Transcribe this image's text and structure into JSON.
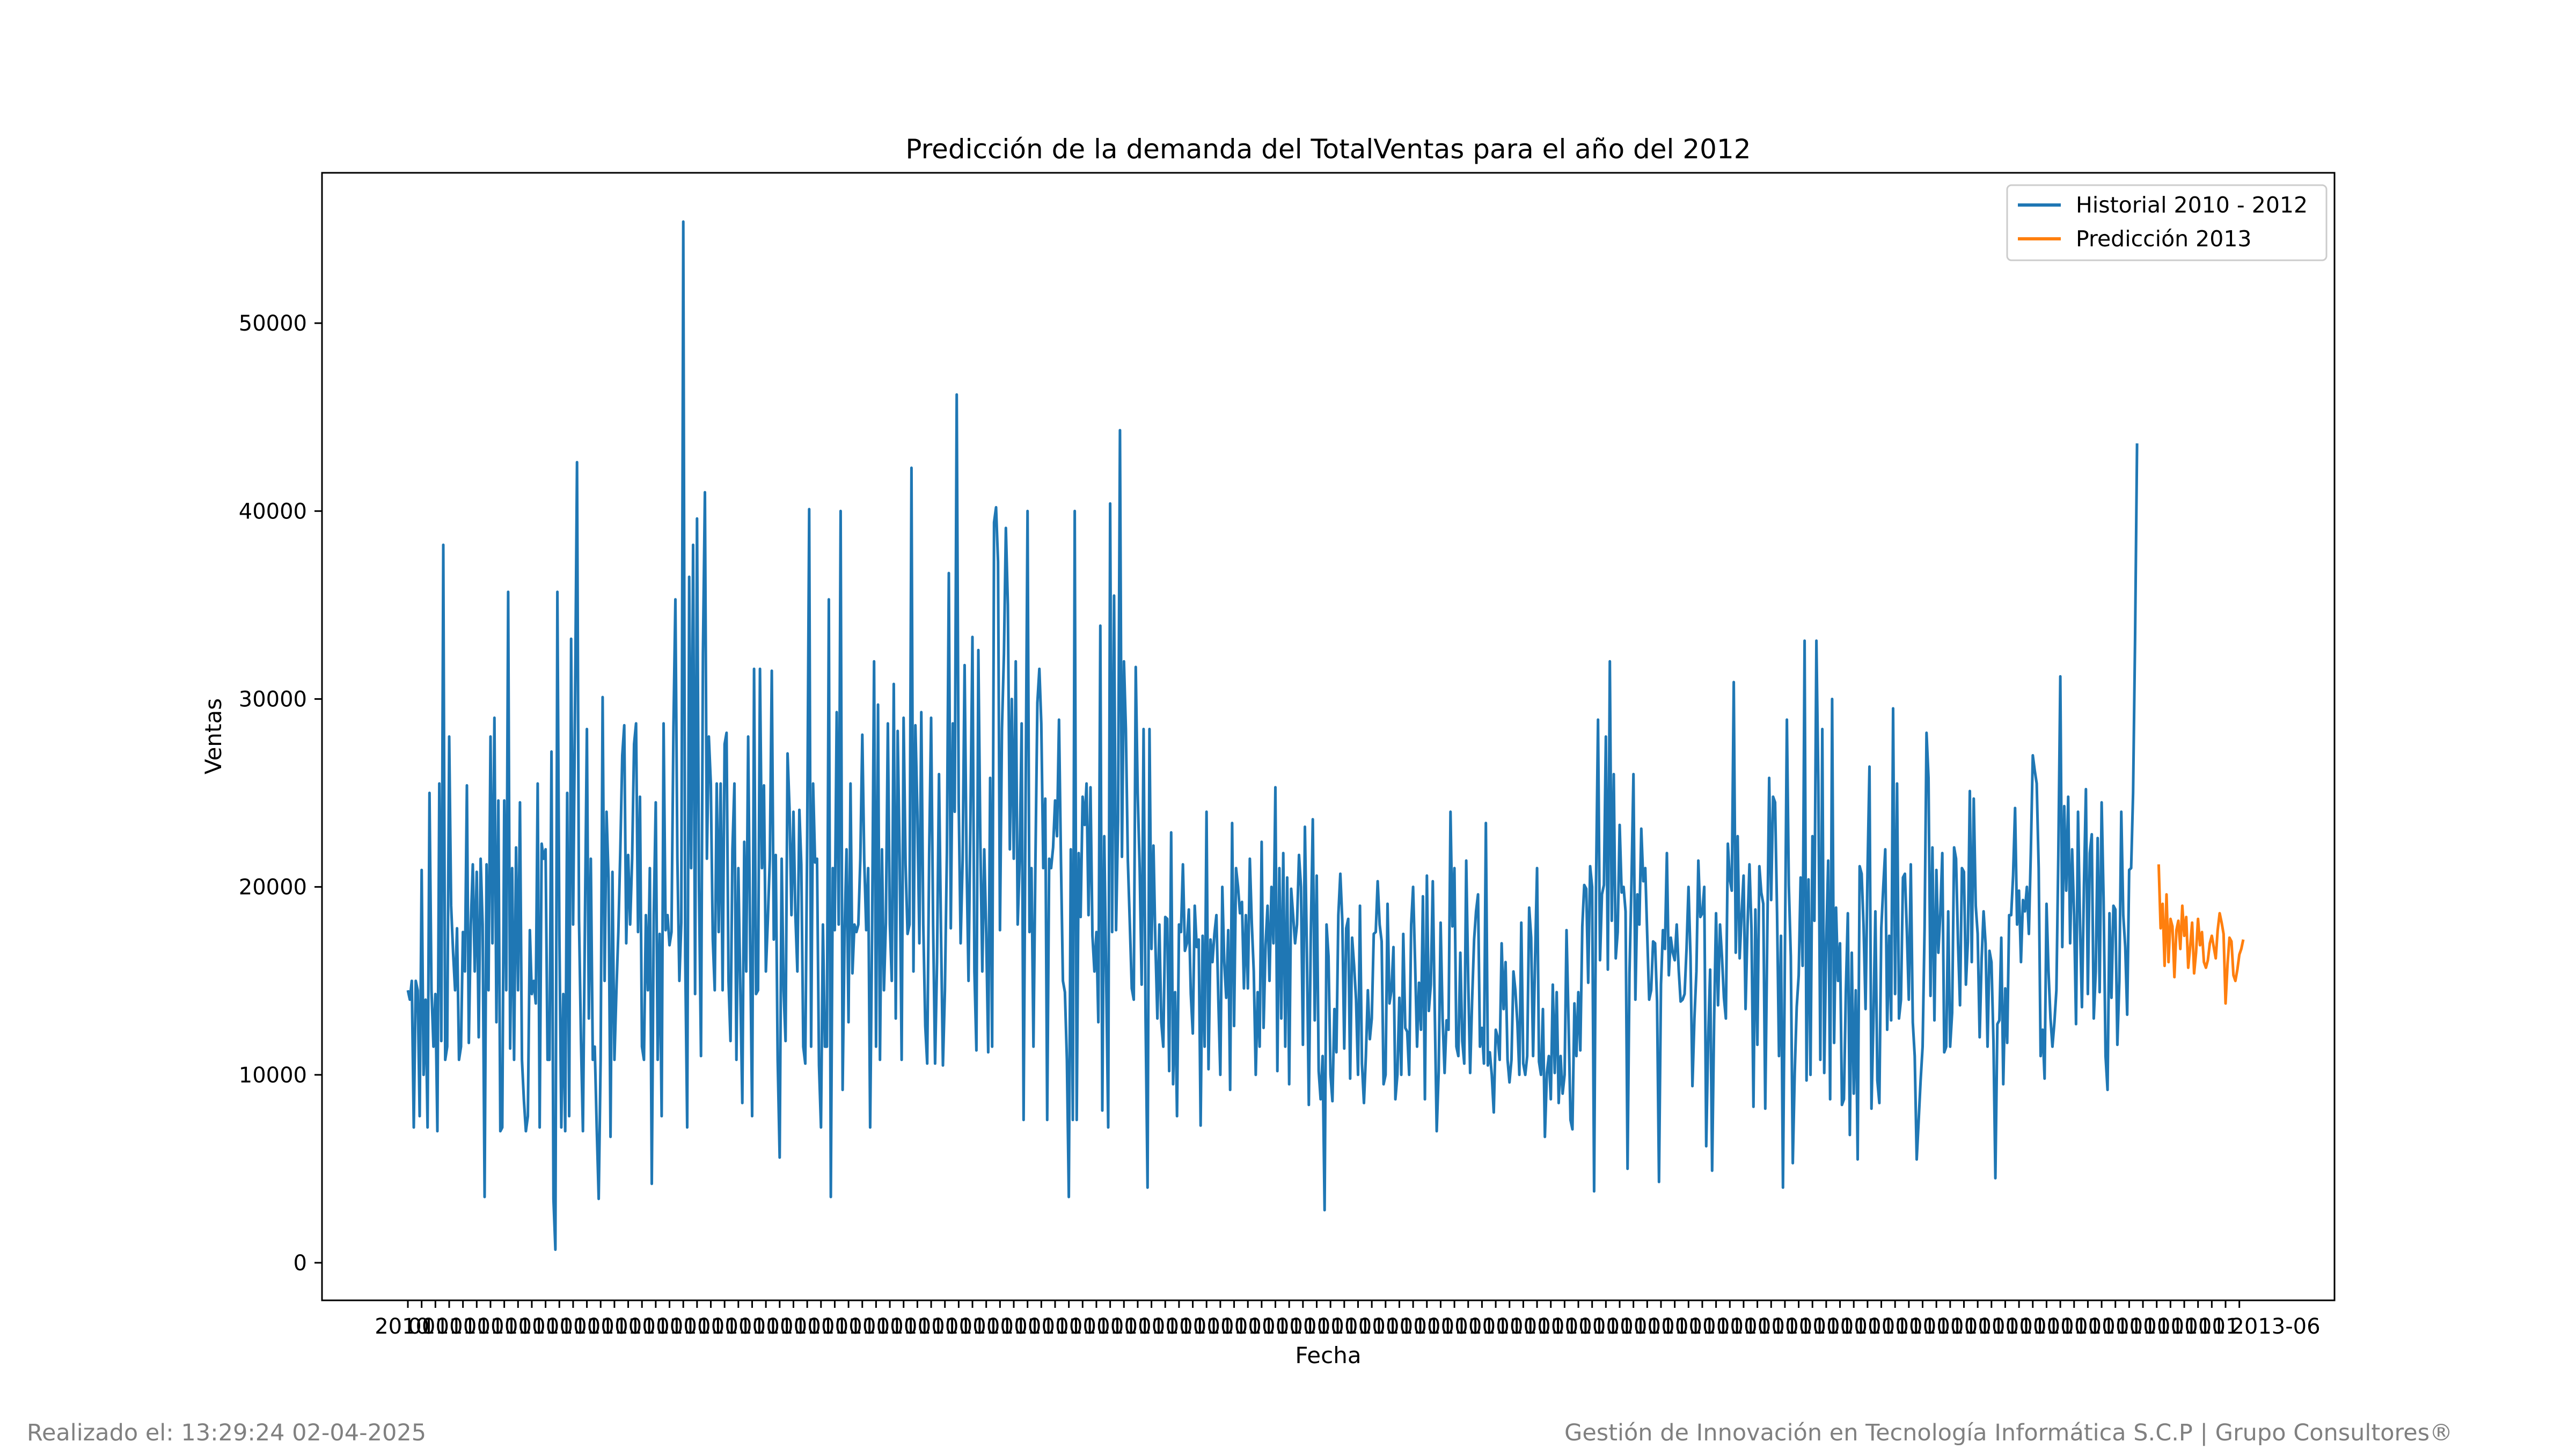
{
  "footer": {
    "left": "Realizado el: 13:29:24 02-04-2025",
    "right": "Gestión de Innovación en Tecnología Informática S.C.P | Grupo Consultores®"
  },
  "chart_data": {
    "type": "line",
    "title": "Predicción de la demanda del TotalVentas para el año del 2012",
    "xlabel": "Fecha",
    "ylabel": "Ventas",
    "ylim": [
      -2000,
      58000
    ],
    "yticks": [
      0,
      10000,
      20000,
      30000,
      40000,
      50000
    ],
    "grid": false,
    "legend_position": "top-right",
    "first_xtick_label": "2010",
    "last_xtick_label": "2013-06",
    "series": [
      {
        "name": "Historial 2010 - 2012",
        "color": "#1f77b4",
        "x_start": 0,
        "values": [
          14500,
          14000,
          15000,
          7200,
          15000,
          14500,
          7800,
          20900,
          10000,
          14000,
          7200,
          25000,
          14500,
          11500,
          14300,
          7000,
          25500,
          11800,
          38200,
          10800,
          11500,
          28000,
          19000,
          16500,
          14500,
          17800,
          10800,
          11500,
          17600,
          15500,
          25400,
          11700,
          18000,
          21200,
          15500,
          20800,
          12000,
          21500,
          18000,
          3500,
          21200,
          14500,
          28000,
          17000,
          29000,
          12800,
          24600,
          7000,
          7200,
          24600,
          14500,
          35700,
          11400,
          21000,
          10800,
          22100,
          14500,
          24500,
          10800,
          8600,
          7000,
          7800,
          17700,
          14300,
          15000,
          13800,
          25500,
          7200,
          22300,
          21500,
          22000,
          10800,
          10800,
          27200,
          3400,
          700,
          35700,
          17600,
          7200,
          14300,
          7000,
          25000,
          7800,
          33200,
          18000,
          30000,
          42600,
          18300,
          11800,
          7000,
          18000,
          28400,
          13000,
          21500,
          10800,
          11500,
          7200,
          3400,
          10800,
          30100,
          15000,
          24000,
          20500,
          6700,
          20800,
          10800,
          14500,
          17600,
          22000,
          27000,
          28600,
          17000,
          21700,
          18000,
          21500,
          27600,
          28700,
          17600,
          24800,
          11500,
          10800,
          18500,
          14500,
          21000,
          4200,
          18500,
          24500,
          10800,
          17500,
          7800,
          28700,
          17700,
          18500,
          16900,
          17600,
          28500,
          35300,
          21500,
          15000,
          18100,
          55400,
          16300,
          7200,
          36500,
          21000,
          38200,
          14300,
          39600,
          20000,
          11000,
          32400,
          41000,
          21500,
          28000,
          25500,
          17200,
          14500,
          25500,
          17600,
          25500,
          14500,
          27600,
          28200,
          15000,
          11800,
          22000,
          25500,
          10800,
          21000,
          14500,
          8500,
          22400,
          15500,
          28000,
          17000,
          7800,
          31600,
          14300,
          14500,
          31600,
          21000,
          25400,
          15500,
          18300,
          21500,
          31500,
          17200,
          21700,
          10800,
          5600,
          21500,
          14500,
          11800,
          27100,
          24200,
          18500,
          24000,
          18500,
          15500,
          24100,
          21200,
          11500,
          10600,
          22700,
          40100,
          11500,
          25500,
          21300,
          21500,
          10500,
          7200,
          18000,
          11500,
          11500,
          35300,
          3500,
          21000,
          17700,
          29300,
          18000,
          40000,
          9200,
          17600,
          22000,
          12800,
          25500,
          15400,
          18000,
          17600,
          18000,
          21500,
          28100,
          21400,
          17700,
          21000,
          7200,
          17800,
          32000,
          11500,
          29700,
          10800,
          22000,
          14500,
          18100,
          28700,
          18000,
          15000,
          30800,
          13000,
          28300,
          21500,
          10800,
          29000,
          21200,
          17500,
          18000,
          42300,
          15500,
          28600,
          24000,
          17000,
          29300,
          18000,
          12600,
          10600,
          21800,
          29000,
          18000,
          10600,
          16000,
          26000,
          17600,
          10500,
          14500,
          21800,
          36700,
          17800,
          28700,
          24000,
          46200,
          24500,
          17000,
          21400,
          31800,
          21500,
          15000,
          24000,
          33300,
          15500,
          11300,
          32600,
          22500,
          15500,
          22000,
          17500,
          11200,
          25800,
          11500,
          39400,
          40200,
          37300,
          17700,
          28400,
          32400,
          39100,
          35000,
          22000,
          30000,
          21500,
          32000,
          18000,
          21400,
          28700,
          7600,
          24400,
          40000,
          17600,
          21000,
          11500,
          21200,
          29800,
          31600,
          28700,
          21000,
          24700,
          7600,
          21500,
          21000,
          22100,
          24600,
          22700,
          28900,
          21300,
          15000,
          14400,
          10800,
          3500,
          22000,
          7600,
          40000,
          7600,
          21800,
          18400,
          24800,
          23300,
          25500,
          18500,
          25300,
          17400,
          15500,
          17600,
          12800,
          33900,
          8100,
          22700,
          15000,
          7200,
          40400,
          17600,
          35500,
          17700,
          23500,
          44300,
          21600,
          32000,
          28400,
          21400,
          18000,
          14600,
          14000,
          31700,
          25000,
          21000,
          14800,
          28400,
          13000,
          4000,
          28400,
          16700,
          22200,
          17000,
          13000,
          18000,
          12800,
          11500,
          18400,
          18300,
          10200,
          22900,
          9500,
          14400,
          7800,
          18000,
          17600,
          21200,
          16600,
          17000,
          18800,
          14300,
          12200,
          19000,
          16800,
          17200,
          7300,
          17400,
          11500,
          24000,
          10300,
          17200,
          16000,
          17500,
          18500,
          14000,
          10000,
          20000,
          16000,
          14100,
          17700,
          9200,
          23400,
          12600,
          21000,
          20000,
          18600,
          19200,
          14600,
          18500,
          14600,
          21500,
          18100,
          15500,
          10000,
          14400,
          11500,
          22400,
          12500,
          16900,
          19000,
          15000,
          20000,
          17000,
          25300,
          10200,
          21000,
          13000,
          21800,
          11500,
          20500,
          9500,
          19900,
          18500,
          17000,
          18000,
          21700,
          20000,
          11600,
          23200,
          16500,
          8400,
          17500,
          23600,
          12900,
          20600,
          10200,
          8700,
          11000,
          2800,
          18000,
          16300,
          10000,
          8600,
          13500,
          11200,
          18500,
          20700,
          18200,
          11400,
          17800,
          18300,
          9800,
          17300,
          15800,
          14000,
          10000,
          19000,
          10600,
          8500,
          11000,
          14500,
          11900,
          13000,
          17500,
          17600,
          20300,
          18000,
          17100,
          9500,
          10000,
          19100,
          13800,
          14500,
          16800,
          8700,
          10000,
          14100,
          10000,
          17500,
          12500,
          12300,
          10000,
          18000,
          20000,
          16000,
          11500,
          14900,
          12400,
          19500,
          8700,
          20600,
          13400,
          14800,
          20300,
          13500,
          7000,
          10200,
          18100,
          13000,
          10100,
          12900,
          12400,
          24000,
          17900,
          21000,
          11500,
          11000,
          16500,
          11800,
          10600,
          21400,
          15000,
          10100,
          14000,
          17200,
          18700,
          19600,
          11500,
          12500,
          10600,
          23400,
          10500,
          11200,
          10000,
          8000,
          12400,
          12000,
          10800,
          17000,
          13500,
          16000,
          10800,
          9600,
          10800,
          15500,
          14500,
          12800,
          10000,
          18100,
          10600,
          10000,
          11000,
          18900,
          17300,
          11000,
          16200,
          21000,
          10700,
          10000,
          13500,
          6700,
          10100,
          11000,
          8700,
          14800,
          10100,
          14400,
          8500,
          11000,
          9000,
          10000,
          17700,
          12900,
          7600,
          7100,
          13800,
          11000,
          14400,
          11300,
          17900,
          20100,
          19900,
          14900,
          21100,
          20000,
          3800,
          20200,
          28900,
          16100,
          19600,
          20100,
          28000,
          15600,
          32000,
          18200,
          26000,
          16200,
          17600,
          23300,
          19700,
          20000,
          18700,
          5000,
          15400,
          20200,
          26000,
          14000,
          19600,
          18000,
          23100,
          20300,
          21000,
          17500,
          14000,
          14500,
          17100,
          17000,
          13900,
          4300,
          14800,
          17700,
          16700,
          21800,
          15300,
          17300,
          16500,
          16100,
          18000,
          15600,
          13900,
          14000,
          14300,
          16700,
          20000,
          16300,
          9400,
          13000,
          15500,
          21400,
          18400,
          18600,
          20000,
          6200,
          12000,
          15600,
          4900,
          12900,
          18600,
          13700,
          18000,
          16300,
          14100,
          13000,
          22300,
          20400,
          19800,
          30900,
          16500,
          22700,
          16200,
          18600,
          20600,
          13500,
          18000,
          21200,
          17800,
          8300,
          18800,
          11600,
          21100,
          19700,
          19100,
          8200,
          17000,
          25800,
          19300,
          24800,
          24500,
          18600,
          11000,
          17400,
          4000,
          16400,
          28900,
          20100,
          16300,
          5300,
          10100,
          13600,
          15300,
          20500,
          15800,
          33100,
          9700,
          20400,
          10000,
          22700,
          18200,
          33100,
          25500,
          10800,
          28400,
          10100,
          17100,
          21400,
          8700,
          30000,
          11700,
          18900,
          15000,
          17000,
          8400,
          8700,
          14500,
          18600,
          6800,
          16500,
          9000,
          14500,
          5500,
          21100,
          20700,
          17900,
          13500,
          20900,
          26400,
          8200,
          13000,
          18700,
          9700,
          8500,
          17800,
          20000,
          22000,
          12400,
          17400,
          12900,
          29500,
          14300,
          25500,
          13000,
          14000,
          20500,
          20700,
          17600,
          14000,
          21200,
          12800,
          11000,
          5500,
          7600,
          9700,
          11500,
          17800,
          28200,
          25800,
          14200,
          22100,
          12900,
          20900,
          16500,
          18600,
          21800,
          11200,
          11500,
          18700,
          11500,
          13300,
          22100,
          21500,
          17000,
          13700,
          21000,
          20800,
          14800,
          17100,
          25100,
          16000,
          24700,
          19000,
          17500,
          12000,
          16200,
          18700,
          17000,
          11500,
          16600,
          16000,
          11800,
          4500,
          12700,
          12900,
          17300,
          9500,
          14600,
          11700,
          18500,
          18500,
          20600,
          24200,
          18000,
          19800,
          16000,
          19300,
          18700,
          20000,
          17500,
          21800,
          27000,
          26200,
          25500,
          21000,
          11000,
          12400,
          9800,
          19100,
          15500,
          13000,
          11500,
          12800,
          14500,
          21700,
          31200,
          16800,
          24300,
          19800,
          24800,
          17000,
          22000,
          18500,
          12700,
          24000,
          18000,
          13600,
          20000,
          25200,
          14300,
          21800,
          22800,
          13000,
          15500,
          22600,
          14400,
          24500,
          19400,
          11000,
          9200,
          18600,
          14100,
          19000,
          18800,
          11600,
          15000,
          24000,
          18500,
          16800,
          13200,
          20900,
          21000,
          25000,
          33200,
          43600
        ]
      },
      {
        "name": "Predicción 2013",
        "color": "#ff7f0e",
        "x_start": 890,
        "values": [
          21200,
          17800,
          19100,
          15800,
          19600,
          16000,
          18300,
          17900,
          15200,
          17700,
          18200,
          16700,
          19000,
          17400,
          18400,
          15700,
          16800,
          18100,
          15400,
          16500,
          18300,
          16900,
          17600,
          16000,
          15700,
          16100,
          17000,
          17400,
          16800,
          16200,
          17700,
          18600,
          18100,
          17500,
          13800,
          15900,
          17300,
          17100,
          15300,
          15000,
          15600,
          16400,
          16700,
          17200
        ]
      }
    ]
  }
}
